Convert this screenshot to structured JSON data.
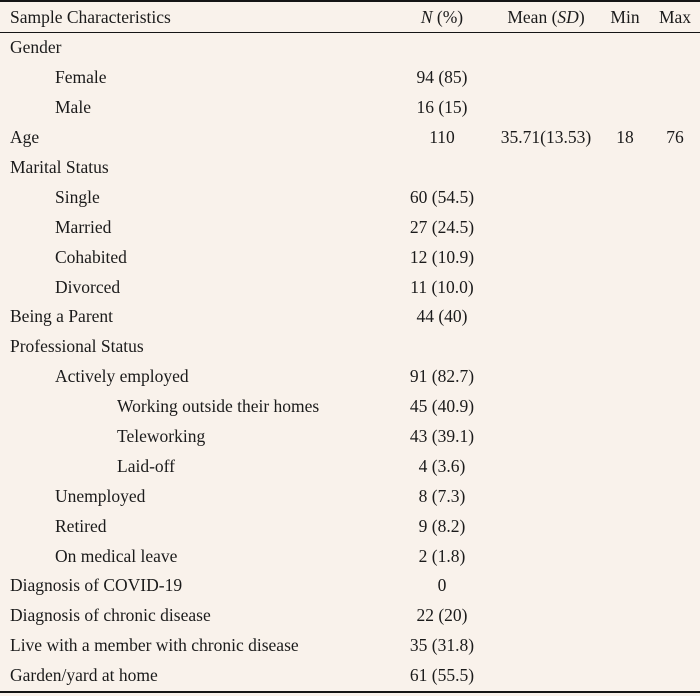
{
  "page": {
    "background_color": "#f9f2eb",
    "text_color": "#1b1b1b",
    "rule_color": "#151515"
  },
  "table": {
    "header": {
      "characteristics": "Sample Characteristics",
      "n_italic": "N",
      "n_rest": " (%)",
      "mean_prefix": "Mean (",
      "mean_italic": "SD",
      "mean_suffix": ")",
      "min": "Min",
      "max": "Max"
    },
    "rows": [
      {
        "label": "Gender",
        "indent": 0,
        "n": ""
      },
      {
        "label": "Female",
        "indent": 1,
        "n": "94 (85)"
      },
      {
        "label": "Male",
        "indent": 1,
        "n": "16 (15)"
      },
      {
        "label": "Age",
        "indent": 0,
        "n": "110",
        "mean": "35.71(13.53)",
        "min": "18",
        "max": "76"
      },
      {
        "label": "Marital Status",
        "indent": 0,
        "n": ""
      },
      {
        "label": "Single",
        "indent": 1,
        "n": "60 (54.5)"
      },
      {
        "label": "Married",
        "indent": 1,
        "n": "27 (24.5)"
      },
      {
        "label": "Cohabited",
        "indent": 1,
        "n": "12 (10.9)"
      },
      {
        "label": "Divorced",
        "indent": 1,
        "n": "11 (10.0)"
      },
      {
        "label": "Being a Parent",
        "indent": 0,
        "n": "44 (40)"
      },
      {
        "label": "Professional Status",
        "indent": 0,
        "n": ""
      },
      {
        "label": "Actively employed",
        "indent": 1,
        "n": "91 (82.7)"
      },
      {
        "label": "Working outside their homes",
        "indent": 2,
        "n": "45 (40.9)"
      },
      {
        "label": "Teleworking",
        "indent": 2,
        "n": "43 (39.1)"
      },
      {
        "label": "Laid-off",
        "indent": 2,
        "n": "4 (3.6)"
      },
      {
        "label": "Unemployed",
        "indent": 1,
        "n": "8 (7.3)"
      },
      {
        "label": "Retired",
        "indent": 1,
        "n": "9 (8.2)"
      },
      {
        "label": "On medical leave",
        "indent": 1,
        "n": "2 (1.8)"
      },
      {
        "label": "Diagnosis of COVID-19",
        "indent": 0,
        "n": "0"
      },
      {
        "label": "Diagnosis of chronic disease",
        "indent": 0,
        "n": "22 (20)"
      },
      {
        "label": "Live with a member with chronic disease",
        "indent": 0,
        "n": "35 (31.8)"
      },
      {
        "label": "Garden/yard at home",
        "indent": 0,
        "n": "61 (55.5)"
      }
    ]
  }
}
